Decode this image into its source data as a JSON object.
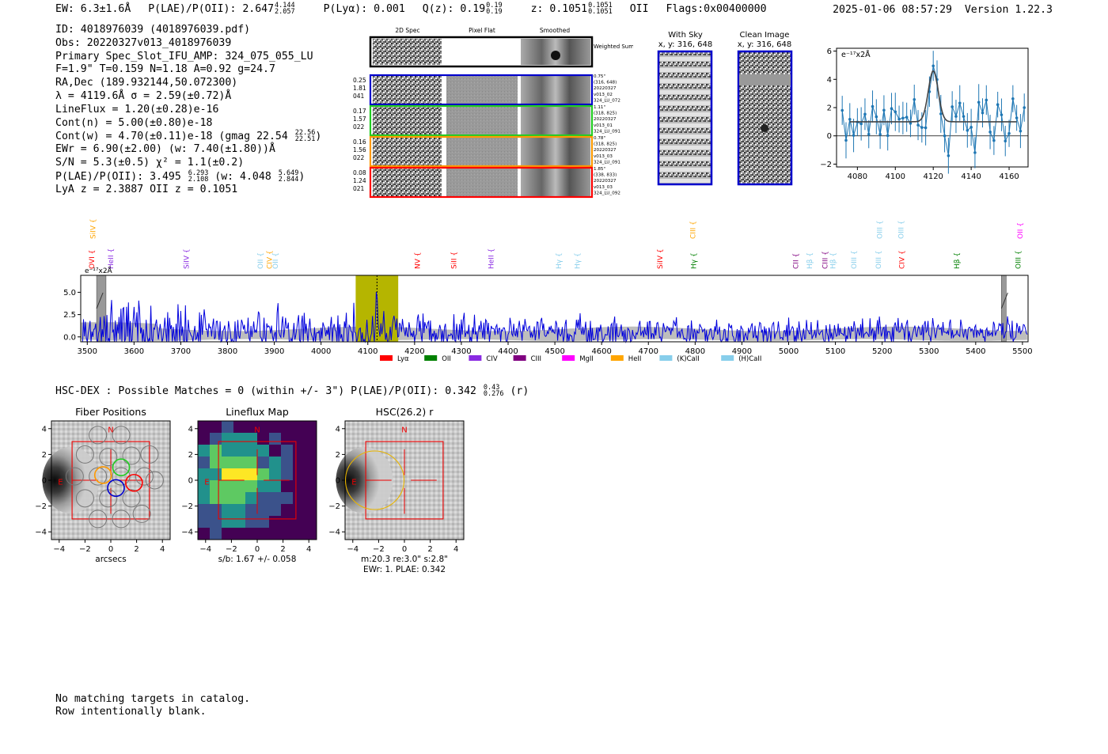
{
  "header": {
    "ew_label": "EW: 6.3±1.6Å",
    "plae_label": "P(LAE)/P(OII): 2.647",
    "plae_hi": "4.144",
    "plae_lo": "2.057",
    "plya_label": "P(Lyα): 0.001",
    "qz_label": "Q(z): 0.19",
    "qz_hi": "0.19",
    "qz_lo": "0.19",
    "z_label": "z: 0.1051",
    "z_hi": "0.1051",
    "z_lo": "0.1051",
    "z_line": "OII",
    "flags": "Flags:0x00400000",
    "date": "2025-01-06 08:57:29",
    "version": "Version 1.22.3"
  },
  "info": {
    "id": "ID: 4018976039 (4018976039.pdf)",
    "obs": "Obs: 20220327v013_4018976039",
    "primary": "Primary Spec_Slot_IFU_AMP: 324_075_055_LU",
    "params": "F=1.9\"  T=0.159  N=1.18  A=0.92  g=24.7",
    "radec": "RA,Dec (189.932144,50.072300)",
    "lambda": "λ = 4119.6Å   σ = 2.59(±0.72)Å",
    "lineflux": "LineFlux = 1.20(±0.28)e-16",
    "cont_n": "Cont(n) = 5.00(±0.80)e-18",
    "cont_w": "Cont(w) = 4.70(±0.11)e-18 (gmag 22.54",
    "cont_w_hi": "22.56",
    "cont_w_lo": "22.51",
    "cont_w_end": ")",
    "ewr": "EWr = 6.90(±2.00) (w: 7.40(±1.80))Å",
    "sn": "S/N = 5.3(±0.5)   χ² = 1.1(±0.2)",
    "plae2": "P(LAE)/P(OII): 3.495",
    "plae2_hi": "6.293",
    "plae2_lo": "2.108",
    "plae2_w": "(w: 4.048",
    "plae2_w_hi": "5.649",
    "plae2_w_lo": "2.844",
    "plae2_end": ")",
    "lya_z": "LyA z = 2.3887   OII z = 0.1051"
  },
  "cutouts": {
    "col_2d": "2D Spec",
    "col_flat": "Pixel Flat",
    "col_smooth": "Smoothed",
    "weighted_sum": "Weighted Sum",
    "colors": [
      "#000000",
      "#0000cc",
      "#22cc22",
      "#ff9900",
      "#ff0000"
    ],
    "rows": [
      {
        "left": [
          "0.25",
          "1.81",
          "041"
        ],
        "right": [
          "0.75\"",
          "(316, 648)",
          "20220327",
          "v013_02",
          "324_LU_072"
        ]
      },
      {
        "left": [
          "0.17",
          "1.57",
          "022"
        ],
        "right": [
          "1.11\"",
          "(318, 825)",
          "20220327",
          "v013_01",
          "324_LU_091"
        ]
      },
      {
        "left": [
          "0.16",
          "1.56",
          "022"
        ],
        "right": [
          "0.78\"",
          "(318, 825)",
          "20220327",
          "v013_03",
          "324_LU_091"
        ]
      },
      {
        "left": [
          "0.08",
          "1.24",
          "021"
        ],
        "right": [
          "1.85\"",
          "(338, 833)",
          "20220327",
          "v013_03",
          "324_LU_092"
        ]
      }
    ]
  },
  "sky": {
    "with_sky_title": "With Sky",
    "with_sky_xy": "x, y: 316, 648",
    "clean_title": "Clean Image",
    "clean_xy": "x, y: 316, 648"
  },
  "zoom_plot": {
    "y_unit": "e⁻¹⁷x2Å",
    "x_ticks": [
      "4080",
      "4100",
      "4120",
      "4140",
      "4160"
    ],
    "y_ticks": [
      "6",
      "4",
      "2",
      "0",
      "−2"
    ],
    "xlim": [
      4069,
      4170
    ],
    "ylim": [
      -2.2,
      6.2
    ]
  },
  "chart_data": {
    "type": "line",
    "title": "",
    "xlabel": "",
    "ylabel": "e⁻¹⁷x2Å",
    "xlim": [
      3486,
      5512
    ],
    "ylim": [
      -0.55,
      6.9
    ],
    "x_ticks": [
      "3500",
      "3600",
      "3700",
      "3800",
      "3900",
      "4000",
      "4100",
      "4200",
      "4300",
      "4400",
      "4500",
      "4600",
      "4700",
      "4800",
      "4900",
      "5000",
      "5100",
      "5200",
      "5300",
      "5400",
      "5500"
    ],
    "y_ticks": [
      "5.0",
      "2.5",
      "0.0"
    ],
    "highlight_band": [
      4074,
      4165
    ],
    "line_wavelength": 4119.6,
    "masked_regions": [
      [
        3520,
        3540
      ],
      [
        5455,
        5465
      ]
    ],
    "legend": [
      {
        "name": "Lyα",
        "color": "#ff0000"
      },
      {
        "name": "OII",
        "color": "#008000"
      },
      {
        "name": "CIV",
        "color": "#8a2be2"
      },
      {
        "name": "CIII",
        "color": "#800080"
      },
      {
        "name": "MgII",
        "color": "#ff00ff"
      },
      {
        "name": "HeII",
        "color": "#ffa500"
      },
      {
        "name": "(K)CaII",
        "color": "#87ceeb"
      },
      {
        "name": "(H)CaII",
        "color": "#87ceeb"
      }
    ],
    "line_labels": [
      {
        "name": "SiIV",
        "wave": 3512,
        "color": "#ffa500",
        "row": 0
      },
      {
        "name": "OVI",
        "wave": 3510,
        "color": "#ff0000",
        "row": 1
      },
      {
        "name": "HeII",
        "wave": 3550,
        "color": "#8a2be2",
        "row": 1
      },
      {
        "name": "SiIV",
        "wave": 3712,
        "color": "#8a2be2",
        "row": 1
      },
      {
        "name": "OII",
        "wave": 3870,
        "color": "#87ceeb",
        "row": 1
      },
      {
        "name": "CIV",
        "wave": 3890,
        "color": "#ffa500",
        "row": 1
      },
      {
        "name": "OII",
        "wave": 3902,
        "color": "#87ceeb",
        "row": 1
      },
      {
        "name": "NV",
        "wave": 4206,
        "color": "#ff0000",
        "row": 1
      },
      {
        "name": "SiII",
        "wave": 4284,
        "color": "#ff0000",
        "row": 1
      },
      {
        "name": "HeII",
        "wave": 4364,
        "color": "#8a2be2",
        "row": 1
      },
      {
        "name": "Hγ",
        "wave": 4508,
        "color": "#87ceeb",
        "row": 1
      },
      {
        "name": "Hγ",
        "wave": 4548,
        "color": "#87ceeb",
        "row": 1
      },
      {
        "name": "SiIV",
        "wave": 4725,
        "color": "#ff0000",
        "row": 1
      },
      {
        "name": "CIII",
        "wave": 4795,
        "color": "#ffa500",
        "row": 0
      },
      {
        "name": "Hγ",
        "wave": 4797,
        "color": "#008000",
        "row": 1
      },
      {
        "name": "CII",
        "wave": 5015,
        "color": "#800080",
        "row": 1
      },
      {
        "name": "Hβ",
        "wave": 5045,
        "color": "#87ceeb",
        "row": 1
      },
      {
        "name": "CIII",
        "wave": 5078,
        "color": "#800080",
        "row": 1
      },
      {
        "name": "Hβ",
        "wave": 5095,
        "color": "#87ceeb",
        "row": 1
      },
      {
        "name": "OIII",
        "wave": 5140,
        "color": "#87ceeb",
        "row": 1
      },
      {
        "name": "OIII",
        "wave": 5195,
        "color": "#87ceeb",
        "row": 0
      },
      {
        "name": "OIII",
        "wave": 5192,
        "color": "#87ceeb",
        "row": 1
      },
      {
        "name": "OIII",
        "wave": 5240,
        "color": "#87ceeb",
        "row": 0
      },
      {
        "name": "CIV",
        "wave": 5242,
        "color": "#ff0000",
        "row": 1
      },
      {
        "name": "Hβ",
        "wave": 5360,
        "color": "#008000",
        "row": 1
      },
      {
        "name": "OII",
        "wave": 5495,
        "color": "#ff00ff",
        "row": 0
      },
      {
        "name": "OIII",
        "wave": 5491,
        "color": "#008000",
        "row": 1
      }
    ]
  },
  "hsc": {
    "line": "HSC-DEX : Possible Matches = 0 (within +/- 3\")  P(LAE)/P(OII): 0.342",
    "hi": "0.43",
    "lo": "0.276",
    "filter": "(r)"
  },
  "panels": [
    {
      "title": "Fiber Positions",
      "xlabel": "arcsecs",
      "caption": ""
    },
    {
      "title": "Lineflux Map",
      "xlabel": "",
      "caption": "s/b: 1.67 +/- 0.058"
    },
    {
      "title": "HSC(26.2) r",
      "xlabel": "",
      "caption": "m:20.3  re:3.0\"  s:2.8\"",
      "caption2": "EWr: 1. PLAE: 0.342"
    }
  ],
  "panel_axes": {
    "x_ticks": [
      "−4",
      "−2",
      "0",
      "2",
      "4"
    ],
    "y_ticks": [
      "4",
      "2",
      "0",
      "−2",
      "−4"
    ],
    "north": "N",
    "east": "E"
  },
  "catalog": {
    "line1": "No matching targets in catalog.",
    "line2": "Row intentionally blank."
  }
}
